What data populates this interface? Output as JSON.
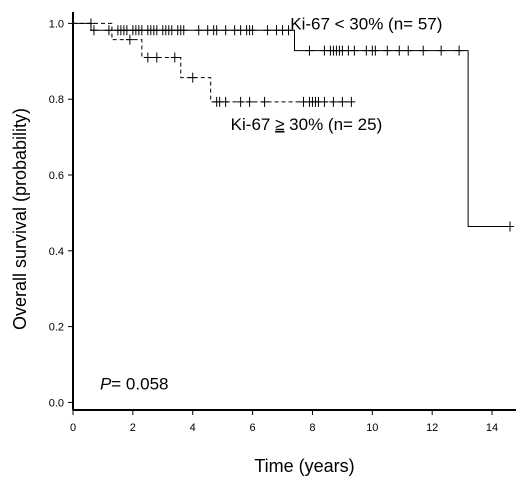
{
  "chart_data": {
    "type": "line",
    "title": "",
    "xlabel": "Time (years)",
    "ylabel": "Overall survival (probability)",
    "xlim": [
      0,
      14.8
    ],
    "ylim": [
      -0.02,
      1.03
    ],
    "xticks": [
      0,
      2,
      4,
      6,
      8,
      10,
      12,
      14
    ],
    "yticks": [
      0.0,
      0.2,
      0.4,
      0.6,
      0.8,
      1.0
    ],
    "xtick_labels": [
      "0",
      "2",
      "4",
      "6",
      "8",
      "10",
      "12",
      "14"
    ],
    "ytick_labels": [
      "0.0",
      "0.2",
      "0.4",
      "0.6",
      "0.8",
      "1.0"
    ],
    "grid": false,
    "legend": "none",
    "series": [
      {
        "name": "Ki-67 < 30% (n= 57)",
        "line_style": "solid",
        "color": "#000000",
        "steps": [
          [
            0,
            1.0
          ],
          [
            0.6,
            0.982
          ],
          [
            7.4,
            0.928
          ],
          [
            13.2,
            0.464
          ],
          [
            14.6,
            0.464
          ]
        ],
        "censor_times": [
          0.7,
          1.2,
          1.5,
          1.6,
          1.7,
          1.8,
          2.0,
          2.1,
          2.2,
          2.3,
          2.5,
          2.6,
          2.7,
          2.8,
          3.0,
          3.1,
          3.2,
          3.3,
          3.5,
          3.6,
          3.7,
          4.2,
          4.5,
          4.7,
          4.8,
          5.1,
          5.4,
          5.6,
          5.8,
          5.9,
          6.0,
          6.5,
          6.8,
          7.0,
          7.2,
          7.9,
          8.4,
          8.6,
          8.7,
          8.8,
          8.9,
          9.0,
          9.2,
          9.4,
          9.8,
          10.0,
          10.1,
          10.5,
          10.9,
          11.2,
          11.7,
          12.3,
          12.9,
          14.6
        ]
      },
      {
        "name": "Ki-67 ≥ 30% (n= 25)",
        "line_style": "dashed",
        "color": "#000000",
        "steps": [
          [
            0,
            1.0
          ],
          [
            1.3,
            0.957
          ],
          [
            2.3,
            0.91
          ],
          [
            3.6,
            0.857
          ],
          [
            4.6,
            0.793
          ],
          [
            9.3,
            0.793
          ]
        ],
        "censor_times": [
          0.6,
          1.9,
          2.5,
          2.8,
          3.4,
          4.0,
          4.8,
          4.9,
          5.1,
          5.6,
          5.9,
          6.4,
          7.7,
          7.9,
          8.0,
          8.1,
          8.2,
          8.4,
          8.7,
          9.0,
          9.3
        ]
      }
    ],
    "annotations": [
      {
        "text": "Ki-67 < 30% (n= 57)",
        "x": 9.8,
        "y": 1.0,
        "anchor": "middle"
      },
      {
        "text": "30% (n= 25)",
        "prefix": "Ki-67 ",
        "symbol": "≥",
        "x": 7.8,
        "y": 0.735,
        "anchor": "middle"
      },
      {
        "text": "= 0.058",
        "prefix_italic": "P",
        "x": 0.9,
        "y": 0.05,
        "anchor": "start"
      }
    ]
  }
}
